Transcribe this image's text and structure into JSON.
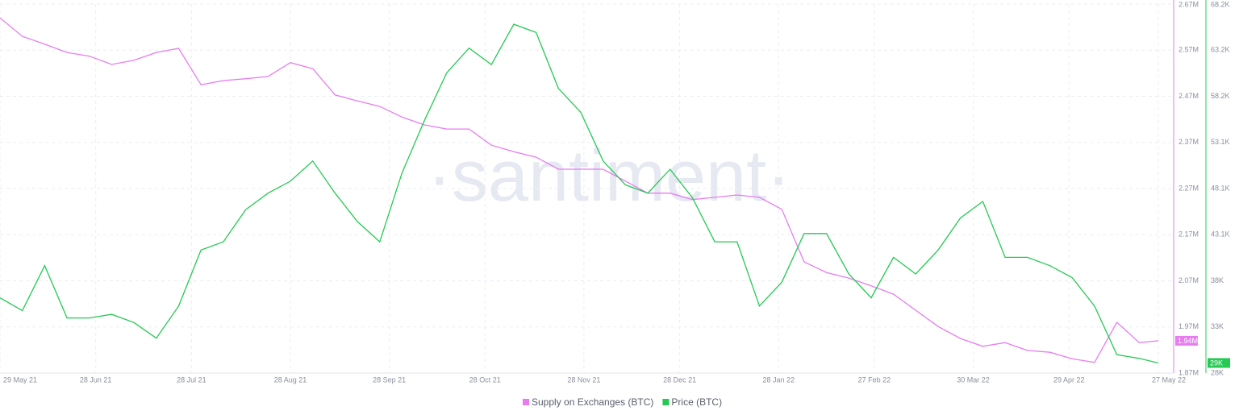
{
  "chart_data": {
    "type": "line",
    "watermark": "·santiment·",
    "x": [
      "29 May 21",
      "5 Jun 21",
      "12 Jun 21",
      "19 Jun 21",
      "26 Jun 21",
      "3 Jul 21",
      "10 Jul 21",
      "17 Jul 21",
      "24 Jul 21",
      "31 Jul 21",
      "7 Aug 21",
      "14 Aug 21",
      "21 Aug 21",
      "28 Aug 21",
      "4 Sep 21",
      "11 Sep 21",
      "18 Sep 21",
      "25 Sep 21",
      "2 Oct 21",
      "9 Oct 21",
      "16 Oct 21",
      "23 Oct 21",
      "30 Oct 21",
      "6 Nov 21",
      "13 Nov 21",
      "20 Nov 21",
      "27 Nov 21",
      "4 Dec 21",
      "11 Dec 21",
      "18 Dec 21",
      "25 Dec 21",
      "1 Jan 22",
      "8 Jan 22",
      "15 Jan 22",
      "22 Jan 22",
      "29 Jan 22",
      "5 Feb 22",
      "12 Feb 22",
      "19 Feb 22",
      "26 Feb 22",
      "5 Mar 22",
      "12 Mar 22",
      "19 Mar 22",
      "26 Mar 22",
      "2 Apr 22",
      "9 Apr 22",
      "16 Apr 22",
      "23 Apr 22",
      "30 Apr 22",
      "7 May 22",
      "14 May 22",
      "21 May 22",
      "27 May 22"
    ],
    "xlim": [
      "29 May 21",
      "27 May 22"
    ],
    "xticks": [
      "29 May 21",
      "28 Jun 21",
      "28 Jul 21",
      "28 Aug 21",
      "28 Sep 21",
      "28 Oct 21",
      "28 Nov 21",
      "28 Dec 21",
      "28 Jan 22",
      "27 Feb 22",
      "30 Mar 22",
      "29 Apr 22",
      "27 May 22"
    ],
    "ylim": [
      1870000,
      2670000
    ],
    "yticks": [
      {
        "value": 1870000,
        "label": "1.87M"
      },
      {
        "value": 1970000,
        "label": "1.97M"
      },
      {
        "value": 2070000,
        "label": "2.07M"
      },
      {
        "value": 2170000,
        "label": "2.17M"
      },
      {
        "value": 2270000,
        "label": "2.27M"
      },
      {
        "value": 2370000,
        "label": "2.37M"
      },
      {
        "value": 2470000,
        "label": "2.47M"
      },
      {
        "value": 2570000,
        "label": "2.57M"
      },
      {
        "value": 2670000,
        "label": "2.67M"
      }
    ],
    "y2lim": [
      28000,
      68200
    ],
    "y2ticks": [
      {
        "value": 28000,
        "label": "28K"
      },
      {
        "value": 33025,
        "label": "33K"
      },
      {
        "value": 38050,
        "label": "38K"
      },
      {
        "value": 43075,
        "label": "43.1K"
      },
      {
        "value": 48100,
        "label": "48.1K"
      },
      {
        "value": 53125,
        "label": "53.1K"
      },
      {
        "value": 58150,
        "label": "58.2K"
      },
      {
        "value": 63175,
        "label": "63.2K"
      },
      {
        "value": 68200,
        "label": "68.2K"
      }
    ],
    "grid": true,
    "legend": "bottom",
    "series": [
      {
        "name": "Supply on Exchanges (BTC)",
        "color": "#e77cf0",
        "axis": "y",
        "current_label": "1.94M",
        "values": [
          2640000,
          2600000,
          2583000,
          2565000,
          2557000,
          2539000,
          2548000,
          2565000,
          2574000,
          2495000,
          2504000,
          2508000,
          2513000,
          2543000,
          2530000,
          2473000,
          2460000,
          2448000,
          2425000,
          2408000,
          2399000,
          2399000,
          2364000,
          2350000,
          2338000,
          2312000,
          2312000,
          2312000,
          2286000,
          2260000,
          2260000,
          2246000,
          2251000,
          2256000,
          2251000,
          2225000,
          2111000,
          2088000,
          2076000,
          2059000,
          2041000,
          2006000,
          1971000,
          1945000,
          1928000,
          1936000,
          1919000,
          1915000,
          1901000,
          1893000,
          1980000,
          1936000,
          1940000
        ]
      },
      {
        "name": "Price (BTC)",
        "color": "#26c953",
        "axis": "y2",
        "current_label": "29K",
        "values": [
          36200,
          34800,
          39700,
          34000,
          34000,
          34400,
          33500,
          31800,
          35300,
          41400,
          42300,
          45800,
          47600,
          48900,
          51100,
          47600,
          44500,
          42300,
          49800,
          55500,
          60700,
          63400,
          61600,
          66000,
          65100,
          59000,
          56400,
          51100,
          48500,
          47600,
          50200,
          47100,
          42300,
          42300,
          35300,
          37900,
          43200,
          43200,
          38800,
          36200,
          40600,
          38800,
          41400,
          44900,
          46700,
          40600,
          40600,
          39700,
          38400,
          35300,
          30000,
          29600,
          29100
        ]
      }
    ]
  }
}
